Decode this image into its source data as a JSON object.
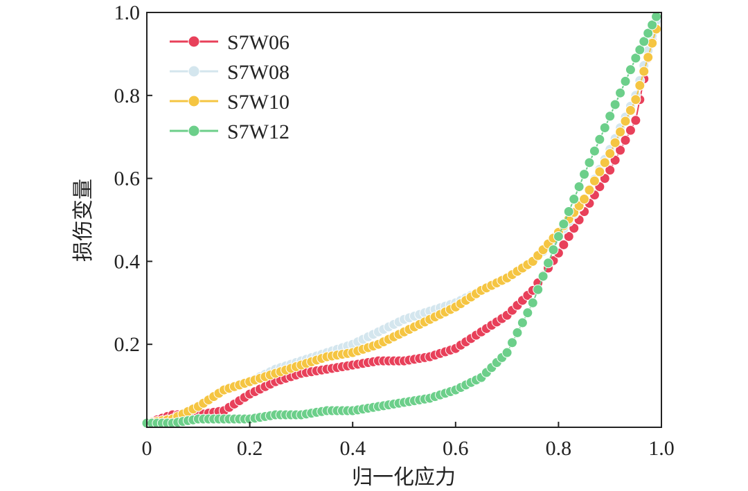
{
  "chart_data": {
    "type": "line",
    "title": "",
    "xlabel": "归一化应力",
    "ylabel": "损伤变量",
    "xlim": [
      0,
      1.0
    ],
    "ylim": [
      0,
      1.0
    ],
    "x_ticks": [
      "0",
      "0.2",
      "0.4",
      "0.6",
      "0.8",
      "1.0"
    ],
    "y_ticks": [
      "0.2",
      "0.4",
      "0.6",
      "0.8",
      "1.0"
    ],
    "grid": false,
    "legend_position": "top-left",
    "series": [
      {
        "name": "S7W06",
        "color": "#e8405a",
        "x": [
          0.0,
          0.05,
          0.1,
          0.15,
          0.2,
          0.25,
          0.3,
          0.35,
          0.4,
          0.45,
          0.5,
          0.55,
          0.6,
          0.65,
          0.7,
          0.75,
          0.8,
          0.85,
          0.9,
          0.95,
          0.99
        ],
        "y": [
          0.01,
          0.03,
          0.03,
          0.04,
          0.08,
          0.11,
          0.13,
          0.14,
          0.15,
          0.16,
          0.16,
          0.17,
          0.19,
          0.23,
          0.27,
          0.33,
          0.42,
          0.52,
          0.62,
          0.74,
          0.99
        ]
      },
      {
        "name": "S7W08",
        "color": "#d4e6ee",
        "x": [
          0.0,
          0.05,
          0.1,
          0.15,
          0.2,
          0.25,
          0.3,
          0.35,
          0.4,
          0.45,
          0.5,
          0.55,
          0.6,
          0.65,
          0.7,
          0.75,
          0.8,
          0.85,
          0.9,
          0.95,
          0.99
        ],
        "y": [
          0.01,
          0.02,
          0.05,
          0.09,
          0.11,
          0.14,
          0.16,
          0.18,
          0.2,
          0.23,
          0.26,
          0.28,
          0.3,
          0.33,
          0.36,
          0.4,
          0.46,
          0.55,
          0.67,
          0.8,
          0.98
        ]
      },
      {
        "name": "S7W10",
        "color": "#f5c542",
        "x": [
          0.0,
          0.05,
          0.1,
          0.15,
          0.2,
          0.25,
          0.3,
          0.35,
          0.4,
          0.45,
          0.5,
          0.55,
          0.6,
          0.65,
          0.7,
          0.75,
          0.8,
          0.85,
          0.9,
          0.95,
          0.99
        ],
        "y": [
          0.01,
          0.02,
          0.05,
          0.09,
          0.11,
          0.13,
          0.15,
          0.17,
          0.18,
          0.2,
          0.23,
          0.26,
          0.29,
          0.33,
          0.36,
          0.4,
          0.47,
          0.55,
          0.66,
          0.79,
          0.96
        ]
      },
      {
        "name": "S7W12",
        "color": "#6ccf8a",
        "x": [
          0.0,
          0.05,
          0.1,
          0.15,
          0.2,
          0.25,
          0.3,
          0.35,
          0.4,
          0.45,
          0.5,
          0.55,
          0.6,
          0.65,
          0.7,
          0.75,
          0.8,
          0.85,
          0.9,
          0.95,
          0.99
        ],
        "y": [
          0.01,
          0.01,
          0.02,
          0.02,
          0.02,
          0.03,
          0.03,
          0.04,
          0.04,
          0.05,
          0.06,
          0.07,
          0.09,
          0.12,
          0.18,
          0.3,
          0.46,
          0.61,
          0.75,
          0.89,
          0.99
        ]
      }
    ]
  }
}
